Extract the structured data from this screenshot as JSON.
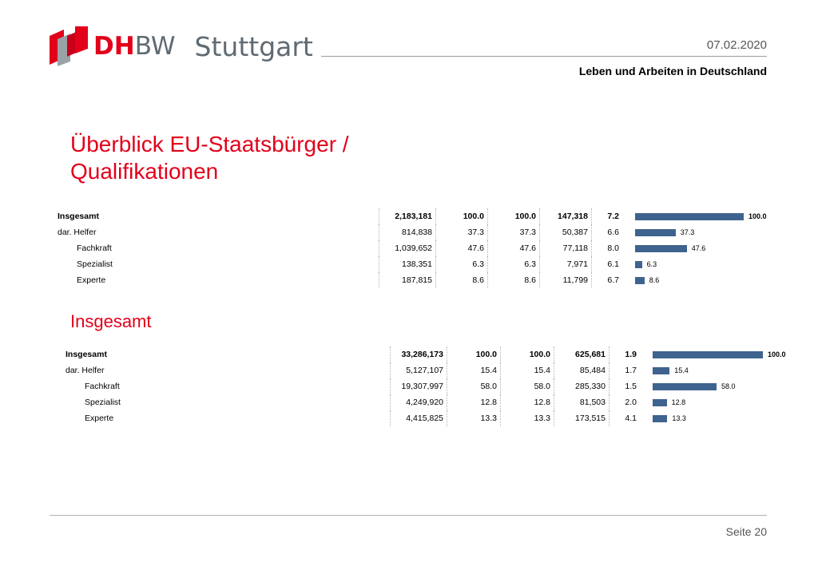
{
  "header": {
    "logo_text_red": "DH",
    "logo_text_grey": "BW",
    "logo_city": "Stuttgart",
    "date": "07.02.2020",
    "subtitle": "Leben und Arbeiten in Deutschland"
  },
  "title_line1": "Überblick EU-Staatsbürger /",
  "title_line2": "Qualifikationen",
  "section2_title": "Insgesamt",
  "table1": {
    "rows": [
      {
        "label": "Insgesamt",
        "v1": "2,183,181",
        "v2": "100.0",
        "v3": "100.0",
        "v4": "147,318",
        "v5": "7.2",
        "bar": 100.0,
        "bar_label": "100.0",
        "bold": true
      },
      {
        "label": "dar.  Helfer",
        "v1": "814,838",
        "v2": "37.3",
        "v3": "37.3",
        "v4": "50,387",
        "v5": "6.6",
        "bar": 37.3,
        "bar_label": "37.3"
      },
      {
        "label": "Fachkraft",
        "v1": "1,039,652",
        "v2": "47.6",
        "v3": "47.6",
        "v4": "77,118",
        "v5": "8.0",
        "bar": 47.6,
        "bar_label": "47.6"
      },
      {
        "label": "Spezialist",
        "v1": "138,351",
        "v2": "6.3",
        "v3": "6.3",
        "v4": "7,971",
        "v5": "6.1",
        "bar": 6.3,
        "bar_label": "6.3"
      },
      {
        "label": "Experte",
        "v1": "187,815",
        "v2": "8.6",
        "v3": "8.6",
        "v4": "11,799",
        "v5": "6.7",
        "bar": 8.6,
        "bar_label": "8.6"
      }
    ]
  },
  "table2": {
    "rows": [
      {
        "label": "Insgesamt",
        "v1": "33,286,173",
        "v2": "100.0",
        "v3": "100.0",
        "v4": "625,681",
        "v5": "1.9",
        "bar": 100.0,
        "bar_label": "100.0",
        "bold": true
      },
      {
        "label": "dar.  Helfer",
        "v1": "5,127,107",
        "v2": "15.4",
        "v3": "15.4",
        "v4": "85,484",
        "v5": "1.7",
        "bar": 15.4,
        "bar_label": "15.4"
      },
      {
        "label": "Fachkraft",
        "v1": "19,307,997",
        "v2": "58.0",
        "v3": "58.0",
        "v4": "285,330",
        "v5": "1.5",
        "bar": 58.0,
        "bar_label": "58.0"
      },
      {
        "label": "Spezialist",
        "v1": "4,249,920",
        "v2": "12.8",
        "v3": "12.8",
        "v4": "81,503",
        "v5": "2.0",
        "bar": 12.8,
        "bar_label": "12.8"
      },
      {
        "label": "Experte",
        "v1": "4,415,825",
        "v2": "13.3",
        "v3": "13.3",
        "v4": "173,515",
        "v5": "4.1",
        "bar": 13.3,
        "bar_label": "13.3"
      }
    ]
  },
  "footer": {
    "page": "Seite 20"
  },
  "colors": {
    "accent": "#e2001a",
    "bar": "#3f638f",
    "logo_grey": "#5f6a72"
  }
}
